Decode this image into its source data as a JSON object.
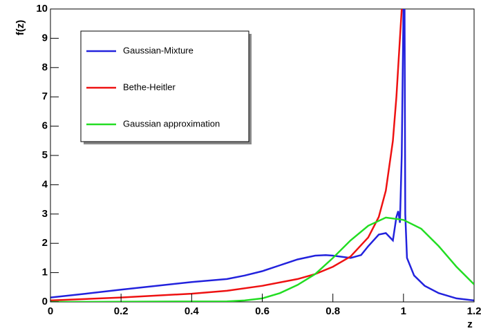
{
  "chart_data": {
    "type": "line",
    "x_label": "z",
    "y_label": "f(z)",
    "xlim": [
      0,
      1.2
    ],
    "ylim": [
      0,
      10
    ],
    "xticks": [
      0,
      0.2,
      0.4,
      0.6,
      0.8,
      1,
      1.2
    ],
    "yticks": [
      0,
      1,
      2,
      3,
      4,
      5,
      6,
      7,
      8,
      9,
      10
    ],
    "legend": "upper left",
    "series": [
      {
        "name": "Gaussian-Mixture",
        "color": "#2222dd",
        "x": [
          0,
          0.1,
          0.2,
          0.3,
          0.4,
          0.5,
          0.55,
          0.6,
          0.65,
          0.7,
          0.75,
          0.78,
          0.8,
          0.85,
          0.88,
          0.9,
          0.93,
          0.95,
          0.97,
          0.98,
          0.985,
          0.99,
          0.995,
          1.0,
          1.003,
          1.005,
          1.01,
          1.03,
          1.06,
          1.1,
          1.15,
          1.2
        ],
        "values": [
          0.15,
          0.28,
          0.42,
          0.55,
          0.68,
          0.78,
          0.9,
          1.05,
          1.25,
          1.45,
          1.58,
          1.6,
          1.58,
          1.5,
          1.6,
          1.9,
          2.3,
          2.35,
          2.1,
          2.9,
          3.1,
          2.7,
          5,
          10,
          10,
          3,
          1.5,
          0.9,
          0.55,
          0.3,
          0.12,
          0.05
        ]
      },
      {
        "name": "Bethe-Heitler",
        "color": "#ee1111",
        "x": [
          0,
          0.2,
          0.4,
          0.5,
          0.6,
          0.7,
          0.75,
          0.8,
          0.85,
          0.9,
          0.93,
          0.95,
          0.97,
          0.98,
          0.99,
          0.995
        ],
        "values": [
          0.05,
          0.15,
          0.28,
          0.38,
          0.55,
          0.78,
          0.95,
          1.2,
          1.55,
          2.2,
          2.9,
          3.8,
          5.5,
          7,
          9,
          10
        ]
      },
      {
        "name": "Gaussian approximation",
        "color": "#22dd22",
        "x": [
          0,
          0.5,
          0.55,
          0.6,
          0.65,
          0.7,
          0.75,
          0.8,
          0.85,
          0.9,
          0.95,
          1.0,
          1.05,
          1.1,
          1.15,
          1.2
        ],
        "values": [
          0,
          0.02,
          0.05,
          0.12,
          0.3,
          0.58,
          0.95,
          1.5,
          2.1,
          2.6,
          2.88,
          2.8,
          2.5,
          1.9,
          1.2,
          0.6
        ]
      }
    ]
  }
}
